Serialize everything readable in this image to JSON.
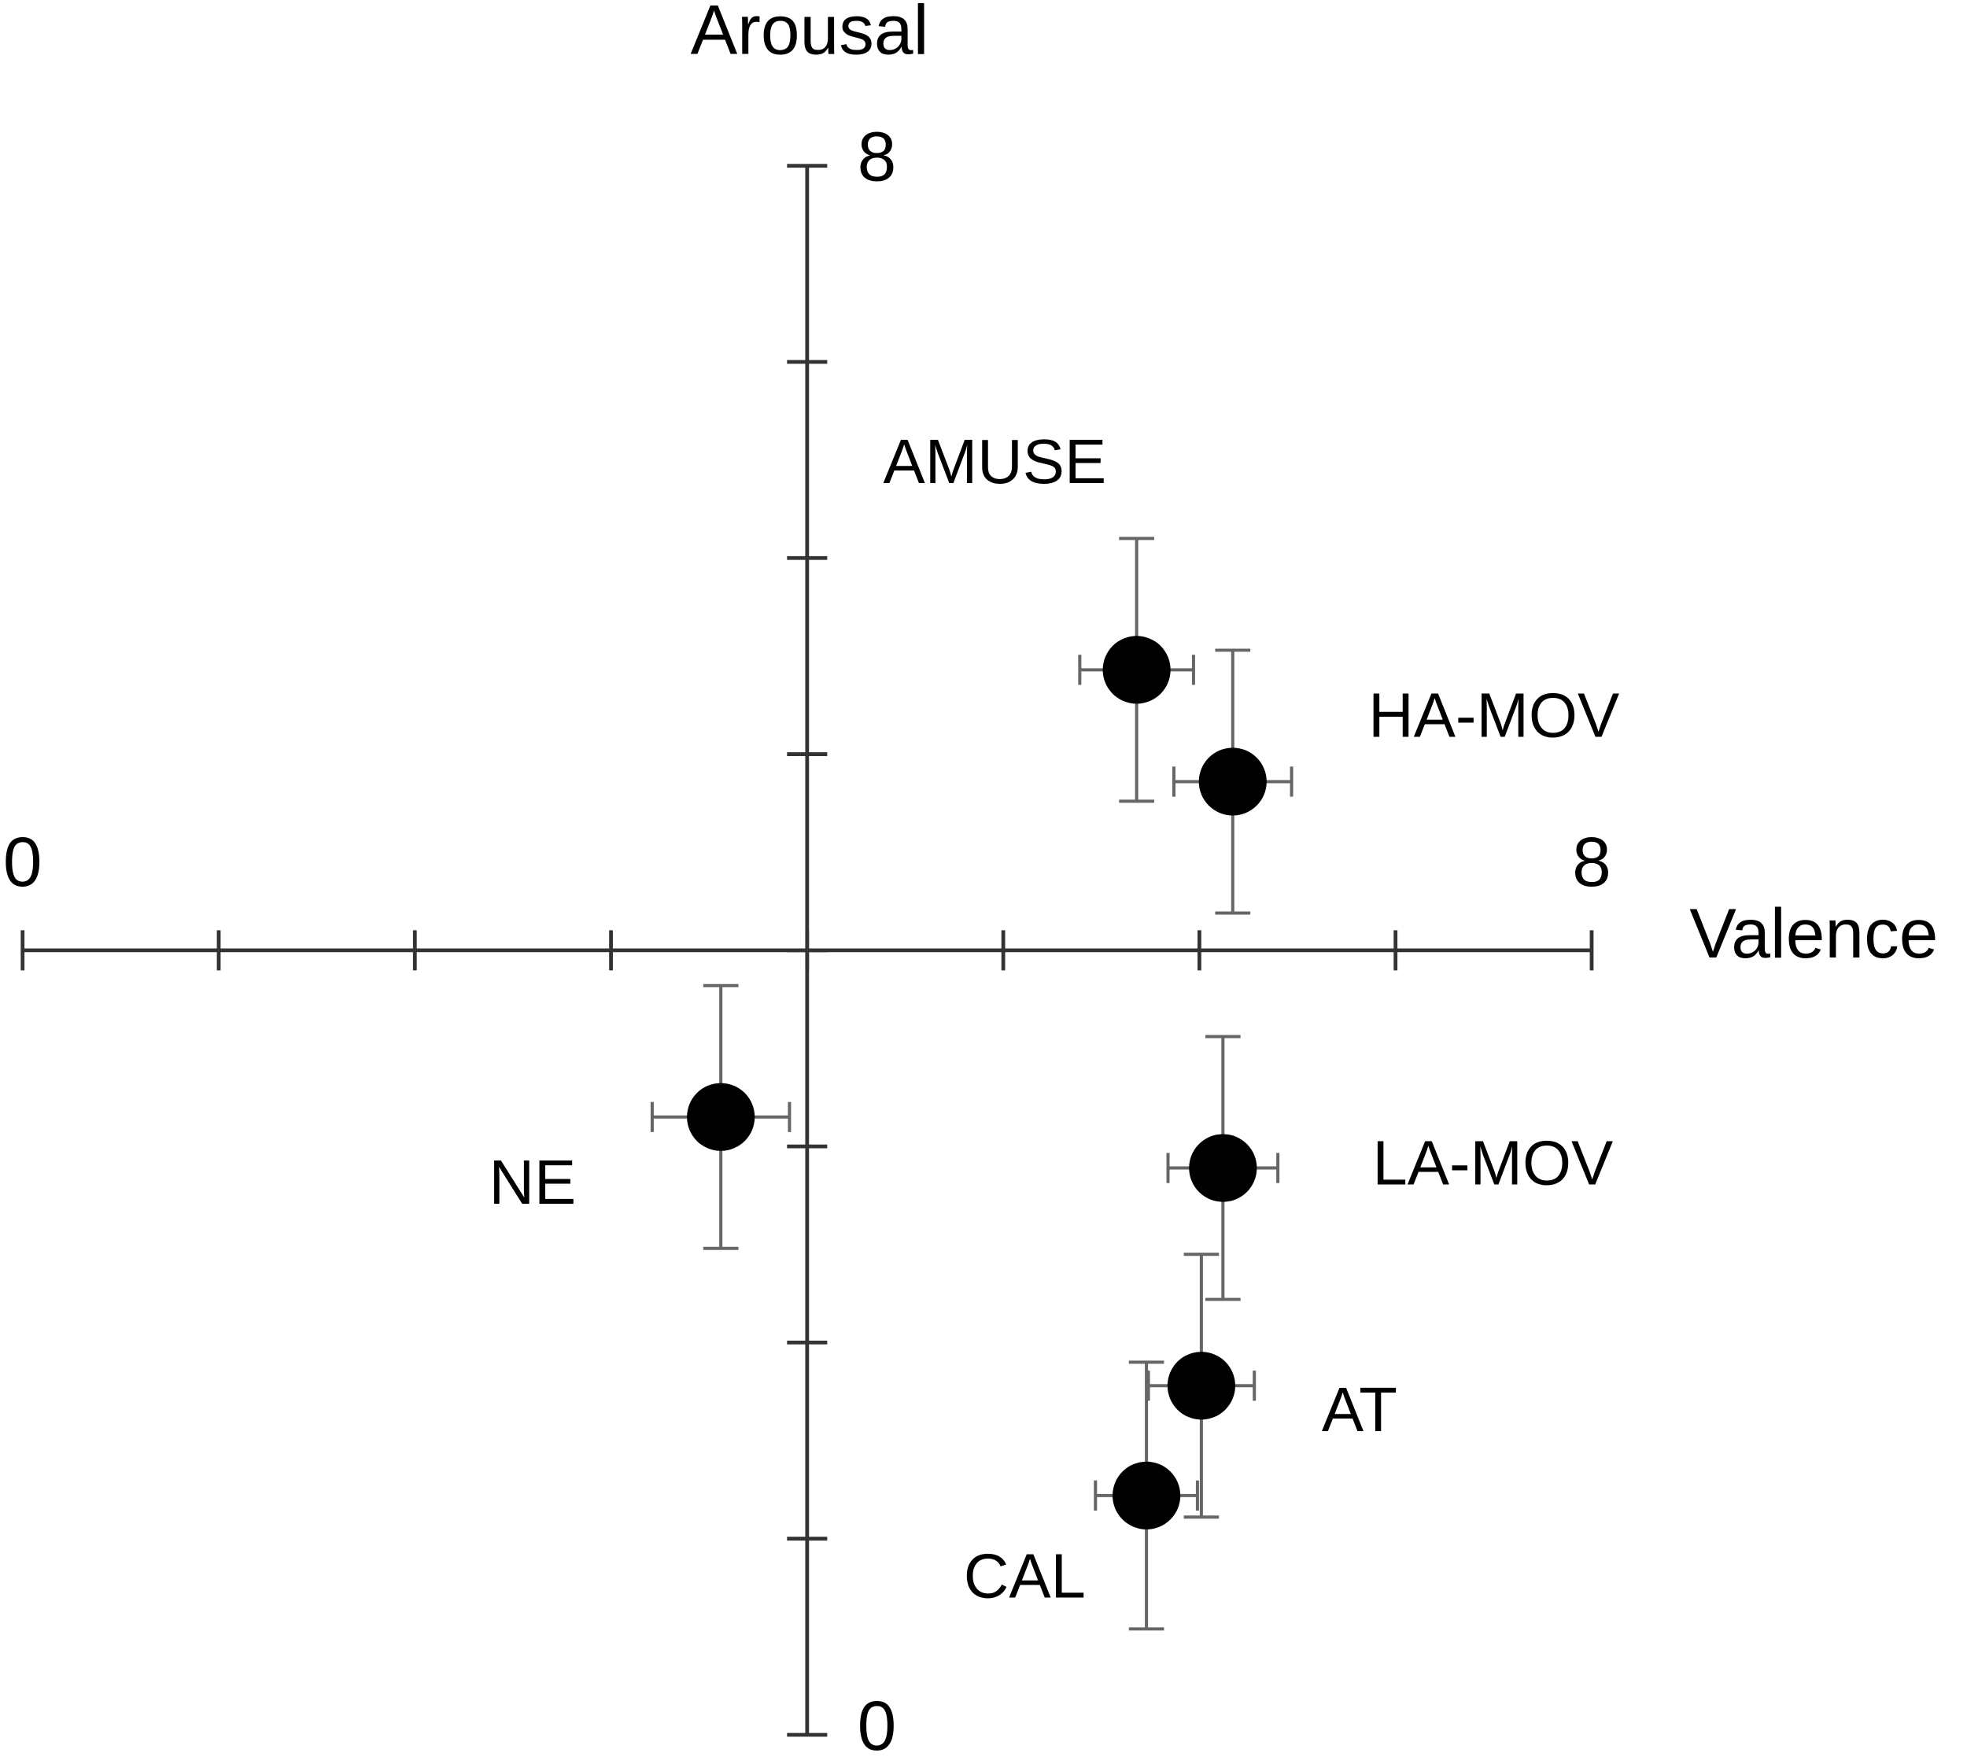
{
  "chart_data": {
    "type": "scatter",
    "x_label": "Valence",
    "y_label": "Arousal",
    "xlim": [
      0,
      8
    ],
    "ylim": [
      0,
      8
    ],
    "xticks": [
      0,
      8
    ],
    "yticks": [
      0,
      8
    ],
    "xminorticks": [
      1,
      2,
      3,
      4,
      5,
      6,
      7
    ],
    "yminorticks": [
      1,
      2,
      3,
      4,
      5,
      6,
      7
    ],
    "origin": [
      4,
      4
    ],
    "color": "#000000",
    "error_color": "#666666",
    "labels": [
      "AMUSE",
      "HA-MOV",
      "NE",
      "LA-MOV",
      "AT",
      "CAL"
    ],
    "x": [
      5.68,
      6.17,
      3.56,
      6.12,
      6.01,
      5.73
    ],
    "y": [
      5.43,
      4.86,
      3.15,
      2.89,
      1.78,
      1.22
    ],
    "x_err": [
      0.29,
      0.3,
      0.35,
      0.28,
      0.27,
      0.26
    ],
    "y_err": [
      0.67,
      0.67,
      0.67,
      0.67,
      0.67,
      0.68
    ]
  }
}
